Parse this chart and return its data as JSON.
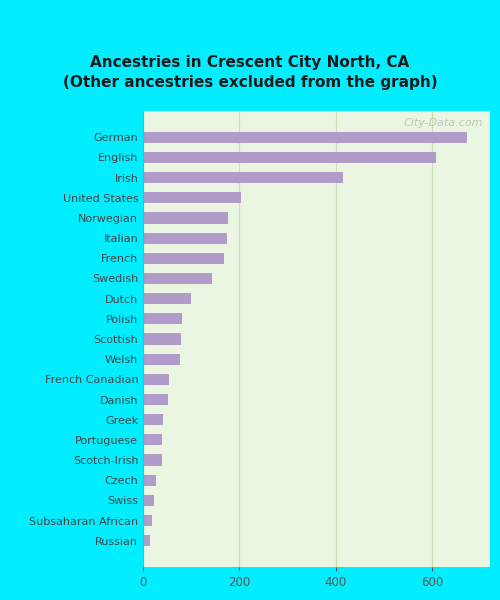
{
  "title_line1": "Ancestries in Crescent City North, CA",
  "title_line2": "(Other ancestries excluded from the graph)",
  "categories": [
    "German",
    "English",
    "Irish",
    "United States",
    "Norwegian",
    "Italian",
    "French",
    "Swedish",
    "Dutch",
    "Polish",
    "Scottish",
    "Welsh",
    "French Canadian",
    "Danish",
    "Greek",
    "Portuguese",
    "Scotch-Irish",
    "Czech",
    "Swiss",
    "Subsaharan African",
    "Russian"
  ],
  "values": [
    672,
    608,
    415,
    205,
    178,
    175,
    168,
    145,
    100,
    82,
    80,
    78,
    55,
    52,
    42,
    40,
    40,
    28,
    24,
    20,
    16
  ],
  "bar_color": "#b09cc8",
  "background_color_outer": "#00eeff",
  "background_color_inner": "#eaf5e2",
  "grid_color": "#ccddb8",
  "title_color": "#1a1a1a",
  "label_color": "#444444",
  "tick_color": "#555555",
  "xlim": [
    0,
    720
  ],
  "xticks": [
    0,
    200,
    400,
    600
  ],
  "watermark": "City-Data.com"
}
